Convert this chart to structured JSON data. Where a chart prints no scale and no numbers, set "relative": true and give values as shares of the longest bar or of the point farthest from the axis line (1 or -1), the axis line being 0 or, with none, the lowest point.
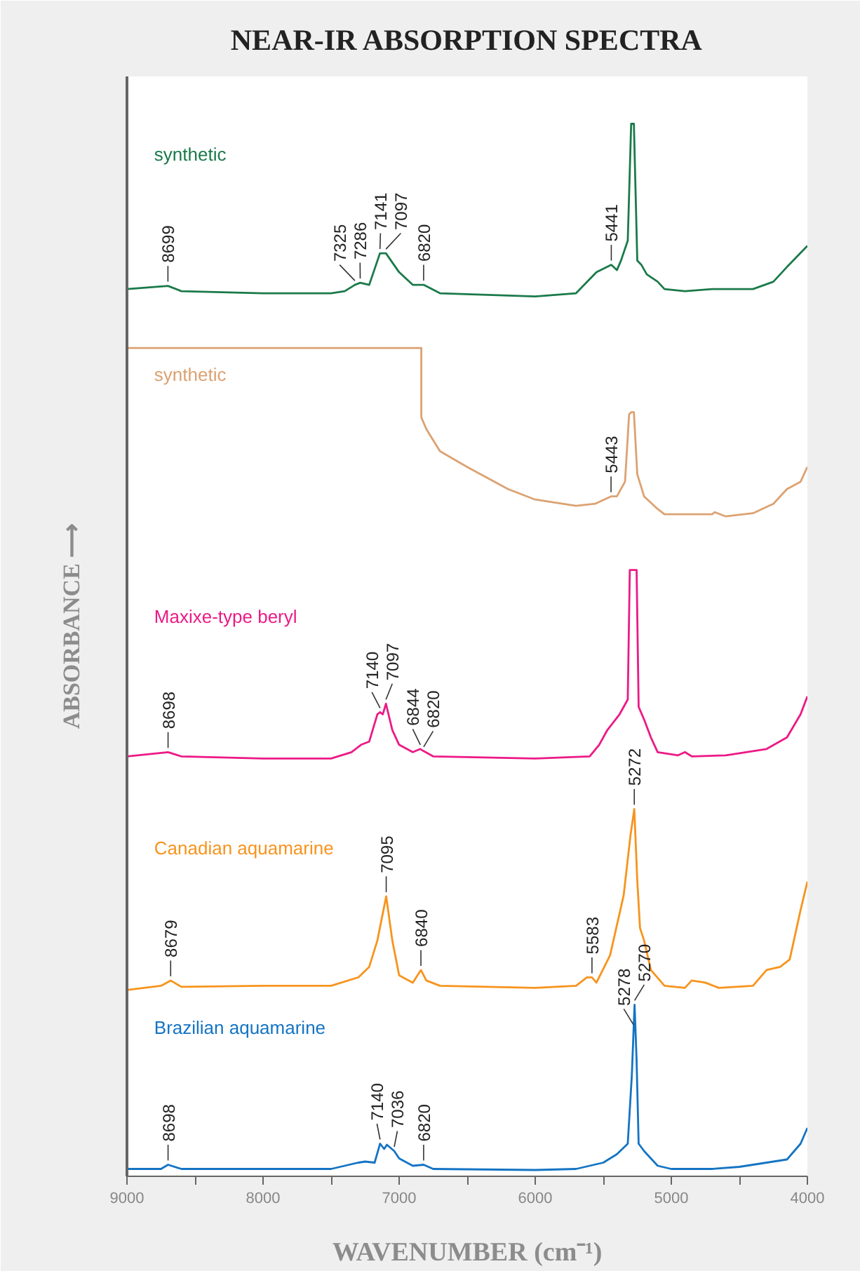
{
  "chart_data": {
    "type": "line",
    "title": "NEAR-IR ABSORPTION SPECTRA",
    "xlabel": "WAVENUMBER (cm⁻¹)",
    "ylabel": "ABSORBANCE ⟶",
    "relative": true,
    "grid": false,
    "legend": false,
    "xlim": [
      9000,
      4000
    ],
    "xticks": [
      9000,
      {
        "value": 8500,
        "label": null
      },
      8000,
      {
        "value": 7500,
        "label": null
      },
      7000,
      {
        "value": 6500,
        "label": null
      },
      6000,
      {
        "value": 5500,
        "label": null
      },
      5000,
      {
        "value": 4500,
        "label": null
      },
      4000
    ],
    "series": [
      {
        "name": "synthetic",
        "color": "#1b7a4a",
        "x": [
          9000,
          8699,
          8600,
          8000,
          7500,
          7400,
          7325,
          7286,
          7220,
          7141,
          7097,
          7000,
          6900,
          6820,
          6700,
          6000,
          5700,
          5550,
          5441,
          5400,
          5370,
          5320,
          5295,
          5275,
          5250,
          5220,
          5180,
          5100,
          5050,
          4900,
          4700,
          4400,
          4250,
          4150,
          4000
        ],
        "values": [
          0.843,
          0.846,
          0.841,
          0.839,
          0.839,
          0.841,
          0.847,
          0.849,
          0.847,
          0.877,
          0.877,
          0.859,
          0.847,
          0.847,
          0.839,
          0.836,
          0.839,
          0.859,
          0.866,
          0.861,
          0.87,
          0.889,
          1.0,
          1.0,
          0.87,
          0.866,
          0.857,
          0.85,
          0.843,
          0.841,
          0.843,
          0.843,
          0.85,
          0.864,
          0.884
        ]
      },
      {
        "name": "synthetic",
        "color": "#dca272",
        "x": [
          9000,
          6837,
          6837,
          6800,
          6700,
          6500,
          6200,
          6000,
          5700,
          5560,
          5443,
          5400,
          5340,
          5310,
          5295,
          5275,
          5250,
          5200,
          5100,
          5050,
          4900,
          4700,
          4680,
          4600,
          4400,
          4250,
          4150,
          4050,
          4000
        ],
        "values": [
          0.787,
          0.787,
          0.721,
          0.71,
          0.689,
          0.674,
          0.653,
          0.643,
          0.637,
          0.639,
          0.646,
          0.646,
          0.66,
          0.724,
          0.726,
          0.726,
          0.667,
          0.646,
          0.634,
          0.629,
          0.629,
          0.629,
          0.631,
          0.627,
          0.63,
          0.639,
          0.653,
          0.66,
          0.674
        ]
      },
      {
        "name": "Maxixe-type beryl",
        "color": "#ec1a86",
        "x": [
          9000,
          8698,
          8600,
          8000,
          7500,
          7350,
          7280,
          7220,
          7160,
          7140,
          7120,
          7097,
          7050,
          7000,
          6900,
          6844,
          6820,
          6750,
          6000,
          5600,
          5530,
          5470,
          5380,
          5320,
          5305,
          5255,
          5240,
          5200,
          5150,
          5100,
          4950,
          4900,
          4850,
          4600,
          4300,
          4150,
          4050,
          4000
        ],
        "values": [
          0.399,
          0.403,
          0.399,
          0.397,
          0.397,
          0.403,
          0.41,
          0.413,
          0.439,
          0.441,
          0.439,
          0.449,
          0.424,
          0.41,
          0.403,
          0.406,
          0.404,
          0.399,
          0.397,
          0.399,
          0.41,
          0.424,
          0.439,
          0.453,
          0.576,
          0.576,
          0.446,
          0.434,
          0.417,
          0.403,
          0.4,
          0.403,
          0.399,
          0.4,
          0.406,
          0.417,
          0.439,
          0.456
        ]
      },
      {
        "name": "Canadian aquamarine",
        "color": "#f7941d",
        "x": [
          9000,
          8750,
          8679,
          8600,
          8000,
          7500,
          7300,
          7220,
          7160,
          7095,
          7050,
          7000,
          6900,
          6840,
          6800,
          6700,
          6000,
          5700,
          5620,
          5583,
          5550,
          5450,
          5350,
          5300,
          5272,
          5250,
          5230,
          5200,
          5150,
          5050,
          4900,
          4850,
          4750,
          4650,
          4400,
          4300,
          4200,
          4130,
          4050,
          4000
        ],
        "values": [
          0.177,
          0.181,
          0.186,
          0.18,
          0.181,
          0.181,
          0.189,
          0.199,
          0.224,
          0.266,
          0.224,
          0.191,
          0.184,
          0.196,
          0.186,
          0.181,
          0.179,
          0.181,
          0.189,
          0.189,
          0.184,
          0.21,
          0.267,
          0.324,
          0.349,
          0.281,
          0.236,
          0.224,
          0.196,
          0.181,
          0.179,
          0.186,
          0.184,
          0.179,
          0.181,
          0.196,
          0.199,
          0.206,
          0.253,
          0.28
        ]
      },
      {
        "name": "Brazilian aquamarine",
        "color": "#1474c4",
        "x": [
          9000,
          8750,
          8698,
          8600,
          8000,
          7500,
          7300,
          7250,
          7180,
          7140,
          7110,
          7090,
          7036,
          7000,
          6900,
          6820,
          6750,
          6000,
          5700,
          5600,
          5500,
          5400,
          5320,
          5290,
          5270,
          5255,
          5240,
          5200,
          5100,
          5000,
          4700,
          4500,
          4300,
          4150,
          4050,
          4000
        ],
        "values": [
          0.007,
          0.007,
          0.011,
          0.007,
          0.007,
          0.007,
          0.013,
          0.014,
          0.013,
          0.031,
          0.026,
          0.03,
          0.024,
          0.017,
          0.01,
          0.011,
          0.007,
          0.006,
          0.007,
          0.01,
          0.013,
          0.021,
          0.031,
          0.096,
          0.163,
          0.11,
          0.031,
          0.024,
          0.01,
          0.007,
          0.007,
          0.009,
          0.013,
          0.016,
          0.031,
          0.046
        ]
      }
    ],
    "annotations": [
      {
        "text": "8699",
        "x": 8699,
        "y": 0.846
      },
      {
        "text": "7325",
        "x": 7325,
        "y": 0.847
      },
      {
        "text": "7286",
        "x": 7286,
        "y": 0.849
      },
      {
        "text": "7141",
        "x": 7141,
        "y": 0.877
      },
      {
        "text": "7097",
        "x": 7097,
        "y": 0.877
      },
      {
        "text": "6820",
        "x": 6820,
        "y": 0.847
      },
      {
        "text": "5441",
        "x": 5441,
        "y": 0.866
      },
      {
        "text": "5443",
        "x": 5443,
        "y": 0.646
      },
      {
        "text": "8698",
        "x": 8698,
        "y": 0.403
      },
      {
        "text": "7140",
        "x": 7140,
        "y": 0.441
      },
      {
        "text": "7097",
        "x": 7097,
        "y": 0.449
      },
      {
        "text": "6844",
        "x": 6844,
        "y": 0.406
      },
      {
        "text": "6820",
        "x": 6820,
        "y": 0.404
      },
      {
        "text": "8679",
        "x": 8679,
        "y": 0.186
      },
      {
        "text": "7095",
        "x": 7095,
        "y": 0.266
      },
      {
        "text": "6840",
        "x": 6840,
        "y": 0.196
      },
      {
        "text": "5583",
        "x": 5583,
        "y": 0.189
      },
      {
        "text": "5272",
        "x": 5272,
        "y": 0.349
      },
      {
        "text": "8698",
        "x": 8698,
        "y": 0.011
      },
      {
        "text": "7140",
        "x": 7140,
        "y": 0.031
      },
      {
        "text": "7036",
        "x": 7036,
        "y": 0.024
      },
      {
        "text": "6820",
        "x": 6820,
        "y": 0.011
      },
      {
        "text": "5278",
        "x": 5278,
        "y": 0.14
      },
      {
        "text": "5270",
        "x": 5270,
        "y": 0.163
      }
    ]
  }
}
